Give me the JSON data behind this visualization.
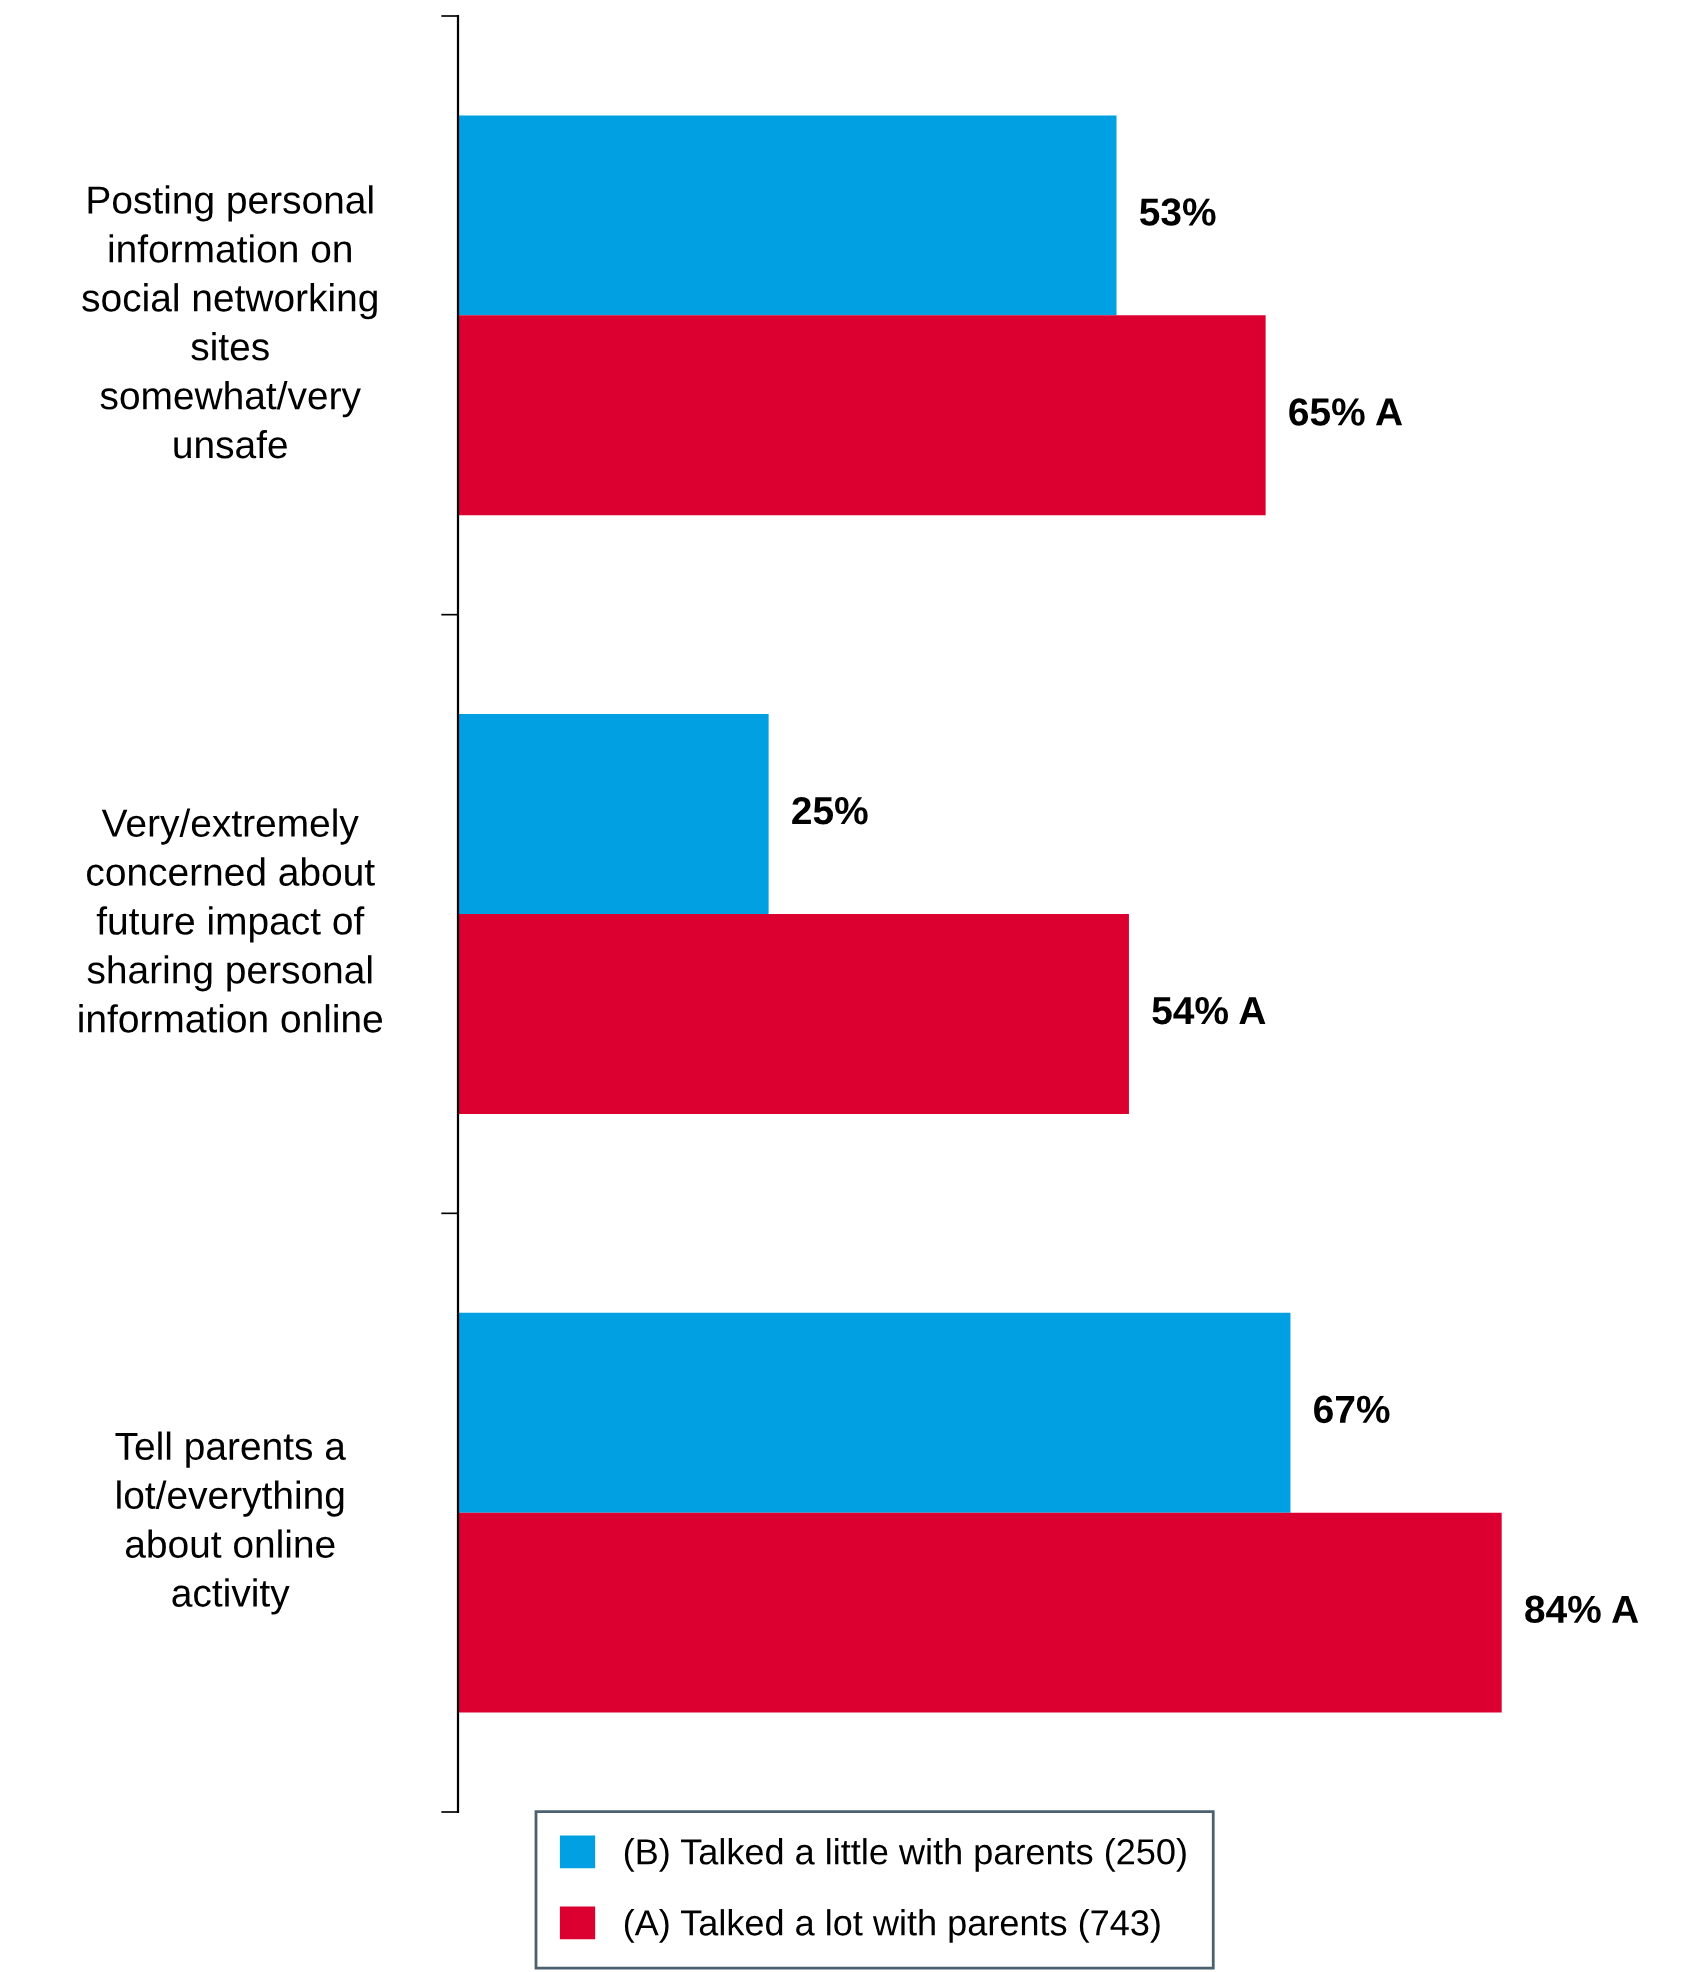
{
  "chart_data": {
    "type": "bar",
    "orientation": "horizontal",
    "categories": [
      "Posting personal\ninformation on\nsocial networking\nsites\nsomewhat/very\nunsafe",
      "Very/extremely\nconcerned about\nfuture impact of\nsharing personal\ninformation online",
      "Tell parents a\nlot/everything\nabout online\nactivity"
    ],
    "series": [
      {
        "name": "(B) Talked a little with parents (250)",
        "color": "#00a0e2",
        "values": [
          53,
          25,
          67
        ],
        "value_labels": [
          "53%",
          "25%",
          "67%"
        ]
      },
      {
        "name": "(A) Talked a lot with parents (743)",
        "color": "#dc0030",
        "values": [
          65,
          54,
          84
        ],
        "value_labels": [
          "65% A",
          "54% A",
          "84% A"
        ]
      }
    ],
    "tick_labels": "y",
    "grid": false,
    "legend": "bottom"
  }
}
